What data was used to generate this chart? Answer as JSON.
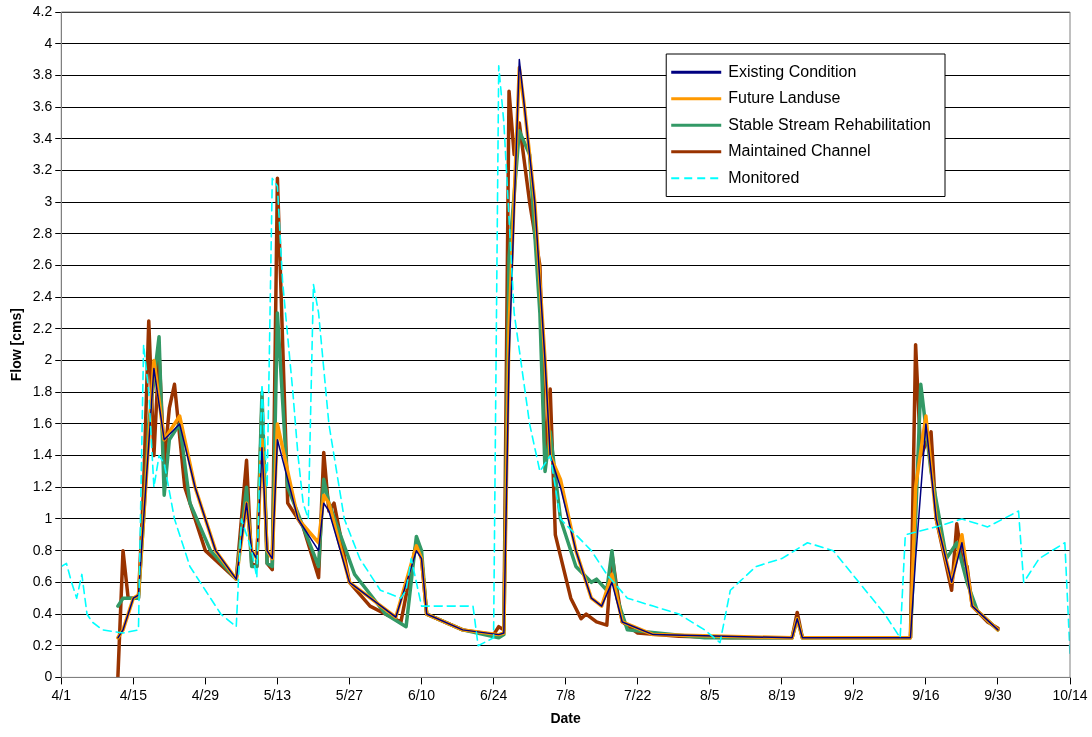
{
  "chart_data": {
    "type": "line",
    "xlabel": "Date",
    "ylabel": "Flow [cms]",
    "xlim": [
      "--04-01",
      "--10-14"
    ],
    "xticks": [
      {
        "value": "--04-01",
        "label": "4/1"
      },
      {
        "value": "--04-15",
        "label": "4/15"
      },
      {
        "value": "--04-29",
        "label": "4/29"
      },
      {
        "value": "--05-13",
        "label": "5/13"
      },
      {
        "value": "--05-27",
        "label": "5/27"
      },
      {
        "value": "--06-10",
        "label": "6/10"
      },
      {
        "value": "--06-24",
        "label": "6/24"
      },
      {
        "value": "--07-08",
        "label": "7/8"
      },
      {
        "value": "--07-22",
        "label": "7/22"
      },
      {
        "value": "--08-05",
        "label": "8/5"
      },
      {
        "value": "--08-19",
        "label": "8/19"
      },
      {
        "value": "--09-02",
        "label": "9/2"
      },
      {
        "value": "--09-16",
        "label": "9/16"
      },
      {
        "value": "--09-30",
        "label": "9/30"
      },
      {
        "value": "--10-14",
        "label": "10/14"
      }
    ],
    "ylim": [
      0,
      4.2
    ],
    "yticks": [
      0,
      0.2,
      0.4,
      0.6,
      0.8,
      1,
      1.2,
      1.4,
      1.6,
      1.8,
      2,
      2.2,
      2.4,
      2.6,
      2.8,
      3,
      3.2,
      3.4,
      3.6,
      3.8,
      4,
      4.2
    ],
    "grid": "y",
    "legend": "top right",
    "marker": "none",
    "series": [
      {
        "name": "Existing Condition",
        "color": "#000080",
        "line_style": "solid",
        "x": [
          "--04-12",
          "--04-13",
          "--04-15",
          "--04-16",
          "--04-17",
          "--04-19",
          "--04-21",
          "--04-24",
          "--04-27",
          "--05-01",
          "--05-05",
          "--05-07",
          "--05-08",
          "--05-09",
          "--05-10",
          "--05-11",
          "--05-12",
          "--05-13",
          "--05-15",
          "--05-17",
          "--05-21",
          "--05-22",
          "--05-23",
          "--05-27",
          "--06-05",
          "--06-09",
          "--06-10",
          "--06-11",
          "--06-18",
          "--06-25",
          "--06-26",
          "--06-27",
          "--06-29",
          "--06-30",
          "--07-02",
          "--07-04",
          "--07-05",
          "--07-07",
          "--07-10",
          "--07-13",
          "--07-15",
          "--07-17",
          "--07-19",
          "--07-25",
          "--08-21",
          "--08-22",
          "--08-23",
          "--09-13",
          "--09-14",
          "--09-16",
          "--09-18",
          "--09-21",
          "--09-23",
          "--09-25",
          "--09-30"
        ],
        "values": [
          0.25,
          0.3,
          0.5,
          0.52,
          1.0,
          1.95,
          1.5,
          1.6,
          1.2,
          0.8,
          0.62,
          1.1,
          0.8,
          0.75,
          1.45,
          0.8,
          0.75,
          1.5,
          1.25,
          1.0,
          0.8,
          1.1,
          1.05,
          0.6,
          0.38,
          0.8,
          0.75,
          0.4,
          0.3,
          0.27,
          0.28,
          2.0,
          3.9,
          3.6,
          3.0,
          2.0,
          1.4,
          1.2,
          0.8,
          0.5,
          0.45,
          0.6,
          0.35,
          0.27,
          0.25,
          0.37,
          0.25,
          0.25,
          0.75,
          1.6,
          1.0,
          0.6,
          0.85,
          0.45,
          0.3
        ]
      },
      {
        "name": "Future Landuse",
        "color": "#ff9900",
        "line_style": "solid",
        "x": [
          "--04-12",
          "--04-13",
          "--04-15",
          "--04-16",
          "--04-17",
          "--04-19",
          "--04-21",
          "--04-24",
          "--04-27",
          "--05-01",
          "--05-05",
          "--05-07",
          "--05-08",
          "--05-09",
          "--05-10",
          "--05-11",
          "--05-12",
          "--05-13",
          "--05-15",
          "--05-17",
          "--05-21",
          "--05-22",
          "--05-23",
          "--05-27",
          "--06-05",
          "--06-09",
          "--06-10",
          "--06-11",
          "--06-18",
          "--06-25",
          "--06-26",
          "--06-27",
          "--06-29",
          "--06-30",
          "--07-02",
          "--07-04",
          "--07-05",
          "--07-07",
          "--07-10",
          "--07-13",
          "--07-15",
          "--07-17",
          "--07-19",
          "--07-25",
          "--08-21",
          "--08-22",
          "--08-23",
          "--09-13",
          "--09-14",
          "--09-16",
          "--09-18",
          "--09-21",
          "--09-23",
          "--09-25",
          "--09-30"
        ],
        "values": [
          0.25,
          0.3,
          0.5,
          0.52,
          1.0,
          2.0,
          1.5,
          1.65,
          1.2,
          0.8,
          0.62,
          1.1,
          0.8,
          0.75,
          1.5,
          0.8,
          0.75,
          1.6,
          1.3,
          1.0,
          0.85,
          1.15,
          1.1,
          0.6,
          0.38,
          0.83,
          0.75,
          0.4,
          0.3,
          0.27,
          0.28,
          2.2,
          3.85,
          3.6,
          3.0,
          2.0,
          1.4,
          1.25,
          0.8,
          0.5,
          0.45,
          0.65,
          0.35,
          0.27,
          0.25,
          0.37,
          0.25,
          0.25,
          1.2,
          1.65,
          1.0,
          0.6,
          0.9,
          0.45,
          0.3
        ]
      },
      {
        "name": "Stable Stream Rehabilitation",
        "color": "#339966",
        "line_style": "solid",
        "x": [
          "--04-12",
          "--04-13",
          "--04-16",
          "--04-17",
          "--04-18",
          "--04-20",
          "--04-21",
          "--04-22",
          "--04-24",
          "--04-26",
          "--04-30",
          "--05-05",
          "--05-07",
          "--05-08",
          "--05-09",
          "--05-10",
          "--05-11",
          "--05-12",
          "--05-13",
          "--05-15",
          "--05-18",
          "--05-21",
          "--05-22",
          "--05-23",
          "--05-28",
          "--06-03",
          "--06-07",
          "--06-09",
          "--06-10",
          "--06-11",
          "--06-18",
          "--06-25",
          "--06-26",
          "--06-27",
          "--06-29",
          "--07-01",
          "--07-03",
          "--07-04",
          "--07-05",
          "--07-07",
          "--07-10",
          "--07-13",
          "--07-14",
          "--07-16",
          "--07-17",
          "--07-18",
          "--07-20",
          "--08-04",
          "--08-21",
          "--08-22",
          "--08-23",
          "--09-13",
          "--09-14",
          "--09-15",
          "--09-17",
          "--09-20",
          "--09-22",
          "--09-24",
          "--09-26",
          "--09-30"
        ],
        "values": [
          0.45,
          0.5,
          0.5,
          1.0,
          1.6,
          2.15,
          1.15,
          1.5,
          1.6,
          1.1,
          0.8,
          0.62,
          1.2,
          0.7,
          0.7,
          1.8,
          0.72,
          0.7,
          2.3,
          1.2,
          0.95,
          0.7,
          1.25,
          1.1,
          0.65,
          0.4,
          0.32,
          0.89,
          0.8,
          0.4,
          0.3,
          0.25,
          0.27,
          2.65,
          3.45,
          3.3,
          2.3,
          1.3,
          1.55,
          1.0,
          0.7,
          0.6,
          0.62,
          0.55,
          0.8,
          0.5,
          0.3,
          0.25,
          0.25,
          0.37,
          0.25,
          0.25,
          1.0,
          1.85,
          1.3,
          0.75,
          0.85,
          0.6,
          0.42,
          0.3
        ]
      },
      {
        "name": "Maintained Channel",
        "color": "#993300",
        "line_style": "solid",
        "x": [
          "--04-12",
          "--04-13",
          "--04-14",
          "--04-16",
          "--04-17",
          "--04-18",
          "--04-19",
          "--04-20",
          "--04-21",
          "--04-22",
          "--04-23",
          "--04-25",
          "--04-29",
          "--05-05",
          "--05-07",
          "--05-08",
          "--05-09",
          "--05-10",
          "--05-11",
          "--05-12",
          "--05-13",
          "--05-15",
          "--05-18",
          "--05-21",
          "--05-22",
          "--05-23",
          "--05-24",
          "--05-27",
          "--05-31",
          "--06-06",
          "--06-09",
          "--06-10",
          "--06-11",
          "--06-18",
          "--06-24",
          "--06-25",
          "--06-26",
          "--06-27",
          "--06-28",
          "--06-29",
          "--07-01",
          "--07-03",
          "--07-04",
          "--07-05",
          "--07-06",
          "--07-09",
          "--07-11",
          "--07-12",
          "--07-14",
          "--07-16",
          "--07-17",
          "--07-18",
          "--07-19",
          "--07-22",
          "--07-30",
          "--08-09",
          "--08-21",
          "--08-22",
          "--08-23",
          "--09-13",
          "--09-14",
          "--09-15",
          "--09-17",
          "--09-18",
          "--09-21",
          "--09-22",
          "--09-23",
          "--09-24",
          "--09-25",
          "--09-28",
          "--09-30"
        ],
        "values": [
          0,
          0.8,
          0.5,
          0.5,
          1.2,
          2.25,
          1.4,
          2.05,
          1.35,
          1.7,
          1.85,
          1.2,
          0.8,
          0.62,
          1.37,
          0.72,
          0.7,
          1.72,
          0.72,
          0.68,
          3.15,
          1.1,
          0.95,
          0.63,
          1.42,
          1.05,
          1.1,
          0.6,
          0.45,
          0.35,
          0.85,
          0.75,
          0.4,
          0.3,
          0.27,
          0.32,
          0.3,
          3.7,
          3.3,
          3.5,
          3.0,
          2.6,
          1.4,
          1.82,
          0.9,
          0.5,
          0.37,
          0.4,
          0.35,
          0.33,
          0.78,
          0.55,
          0.35,
          0.28,
          0.26,
          0.25,
          0.25,
          0.41,
          0.25,
          0.25,
          2.1,
          1.4,
          1.55,
          1.0,
          0.55,
          0.97,
          0.75,
          0.7,
          0.45,
          0.35,
          0.31
        ]
      },
      {
        "name": "Monitored",
        "color": "#00ffff",
        "line_style": "dashed",
        "x": [
          "--04-01",
          "--04-02",
          "--04-03",
          "--04-04",
          "--04-05",
          "--04-06",
          "--04-07",
          "--04-09",
          "--04-13",
          "--04-16",
          "--04-17",
          "--04-18",
          "--04-19",
          "--04-20",
          "--04-21",
          "--04-23",
          "--04-26",
          "--04-29",
          "--05-02",
          "--05-05",
          "--05-06",
          "--05-08",
          "--05-09",
          "--05-10",
          "--05-11",
          "--05-12",
          "--05-13",
          "--05-14",
          "--05-16",
          "--05-17",
          "--05-18",
          "--05-19",
          "--05-20",
          "--05-21",
          "--05-23",
          "--05-26",
          "--05-29",
          "--06-02",
          "--06-06",
          "--06-07",
          "--06-08",
          "--06-10",
          "--06-20",
          "--06-21",
          "--06-24",
          "--06-25",
          "--06-26",
          "--06-28",
          "--07-01",
          "--07-03",
          "--07-05",
          "--07-07",
          "--07-10",
          "--07-13",
          "--07-16",
          "--07-20",
          "--07-25",
          "--07-30",
          "--08-04",
          "--08-07",
          "--08-09",
          "--08-14",
          "--08-19",
          "--08-24",
          "--08-29",
          "--09-03",
          "--09-08",
          "--09-11",
          "--09-12",
          "--09-18",
          "--09-23",
          "--09-28",
          "--10-04",
          "--10-05",
          "--10-08",
          "--10-13",
          "--10-14"
        ],
        "values": [
          0.7,
          0.72,
          0.6,
          0.5,
          0.65,
          0.4,
          0.35,
          0.3,
          0.28,
          0.3,
          2.1,
          1.8,
          1.2,
          1.4,
          1.35,
          1.0,
          0.7,
          0.55,
          0.4,
          0.32,
          1.0,
          0.8,
          0.63,
          1.85,
          1.2,
          3.15,
          3.1,
          2.5,
          1.8,
          1.4,
          1.1,
          1.0,
          2.48,
          2.3,
          1.6,
          1.0,
          0.75,
          0.55,
          0.5,
          0.55,
          0.75,
          0.45,
          0.45,
          0.2,
          0.25,
          3.86,
          3.5,
          2.3,
          1.6,
          1.3,
          1.4,
          1.0,
          0.9,
          0.8,
          0.65,
          0.5,
          0.45,
          0.4,
          0.3,
          0.22,
          0.55,
          0.7,
          0.75,
          0.85,
          0.8,
          0.6,
          0.4,
          0.25,
          0.9,
          0.95,
          1.0,
          0.95,
          1.05,
          0.6,
          0.75,
          0.85,
          0.15
        ]
      }
    ]
  }
}
